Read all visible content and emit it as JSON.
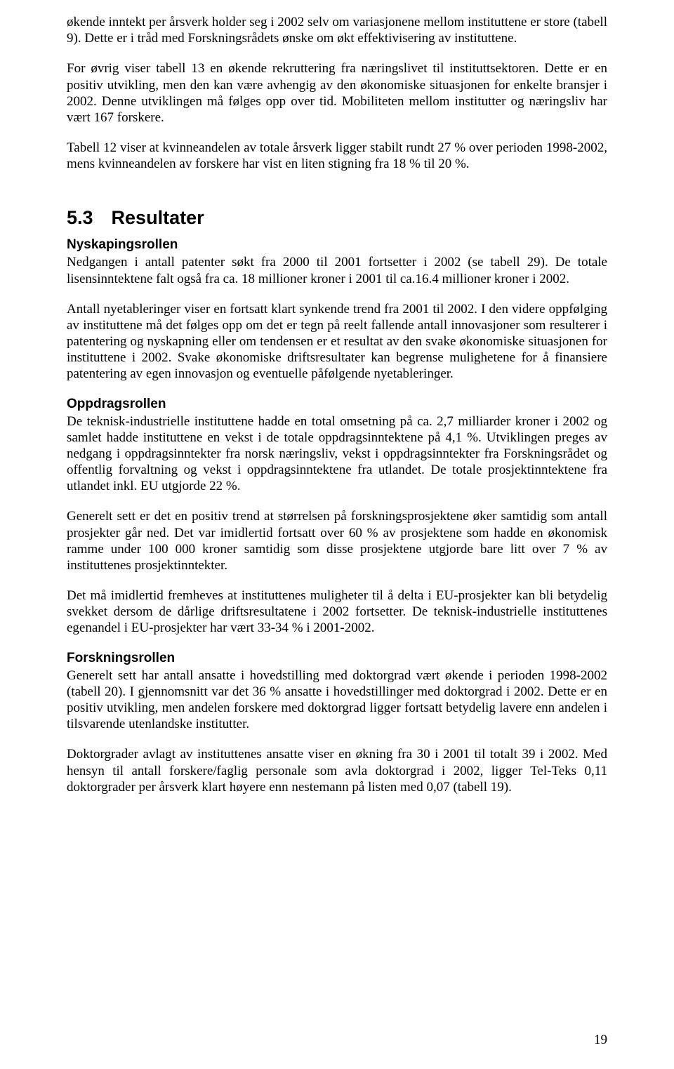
{
  "page_number": "19",
  "intro": {
    "p1": "økende inntekt per årsverk holder seg i 2002 selv om variasjonene mellom instituttene er store (tabell 9). Dette er i tråd med Forskningsrådets ønske om økt effektivisering av instituttene.",
    "p2": "For øvrig viser tabell 13 en økende rekruttering fra næringslivet til instituttsektoren. Dette er en positiv utvikling, men den kan være avhengig av den økonomiske situasjonen for enkelte bransjer i 2002. Denne utviklingen må følges opp over tid. Mobiliteten mellom institutter og næringsliv har vært 167 forskere.",
    "p3": "Tabell 12 viser at kvinneandelen av totale årsverk ligger stabilt rundt 27 % over perioden 1998-2002, mens kvinneandelen av forskere har vist en liten stigning fra 18 % til 20 %."
  },
  "section": {
    "number": "5.3",
    "title": "Resultater"
  },
  "nyskaping": {
    "heading": "Nyskapingsrollen",
    "p1": "Nedgangen i antall patenter søkt fra 2000 til 2001 fortsetter i 2002 (se tabell 29). De totale lisensinntektene falt også fra ca. 18 millioner kroner i 2001 til ca.16.4 millioner kroner i 2002.",
    "p2": "Antall nyetableringer viser en fortsatt klart synkende trend fra 2001 til 2002. I den videre oppfølging av instituttene må det følges opp om det er tegn på reelt fallende antall innovasjoner som resulterer i patentering og nyskapning eller om tendensen er et resultat av den svake økonomiske situasjonen for instituttene i 2002. Svake økonomiske driftsresultater kan begrense mulighetene for å finansiere patentering av egen innovasjon og eventuelle påfølgende nyetableringer."
  },
  "oppdrag": {
    "heading": "Oppdragsrollen",
    "p1": "De teknisk-industrielle instituttene hadde en total omsetning på ca. 2,7 milliarder kroner i 2002 og samlet hadde instituttene en vekst i de totale oppdragsinntektene på 4,1 %. Utviklingen preges av nedgang i oppdragsinntekter fra norsk næringsliv, vekst i oppdragsinntekter fra Forskningsrådet og offentlig forvaltning og vekst i oppdragsinntektene fra utlandet. De totale prosjektinntektene fra utlandet inkl. EU utgjorde 22 %.",
    "p2": "Generelt sett er det en positiv trend at størrelsen på forskningsprosjektene øker samtidig som antall prosjekter går ned. Det var imidlertid fortsatt over 60 % av prosjektene som hadde en økonomisk ramme under 100 000 kroner samtidig som disse prosjektene utgjorde bare litt over 7 % av instituttenes prosjektinntekter.",
    "p3": "Det må imidlertid fremheves at instituttenes muligheter til å delta i EU-prosjekter kan bli betydelig svekket dersom de dårlige driftsresultatene i 2002 fortsetter. De teknisk-industrielle instituttenes egenandel i EU-prosjekter har vært 33-34 % i 2001-2002."
  },
  "forskning": {
    "heading": "Forskningsrollen",
    "p1": "Generelt sett har antall ansatte i hovedstilling med doktorgrad vært økende i perioden 1998-2002 (tabell 20). I gjennomsnitt var det 36 % ansatte i hovedstillinger med doktorgrad i 2002. Dette er en positiv utvikling, men andelen forskere med doktorgrad ligger fortsatt betydelig lavere enn andelen i tilsvarende utenlandske institutter.",
    "p2": "Doktorgrader avlagt av instituttenes ansatte viser en økning fra 30 i 2001 til totalt 39 i 2002. Med hensyn til antall forskere/faglig personale som avla doktorgrad i 2002, ligger Tel-Teks 0,11 doktorgrader per årsverk klart høyere enn nestemann på listen med 0,07 (tabell 19)."
  }
}
